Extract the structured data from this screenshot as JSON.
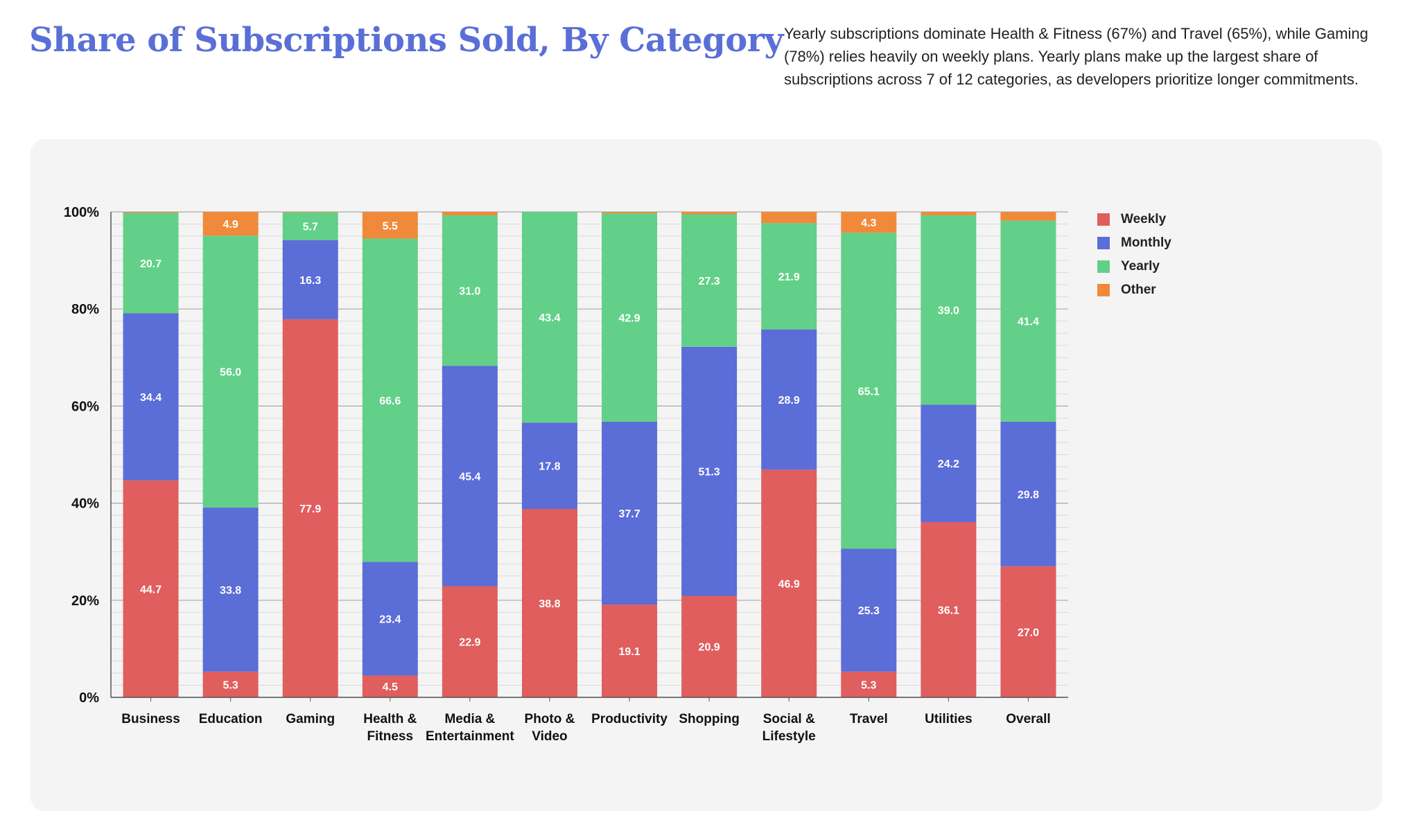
{
  "header": {
    "title": "Share of Subscriptions Sold, By Category",
    "description": "Yearly subscriptions dominate Health & Fitness (67%) and Travel (65%), while Gaming (78%) relies heavily on weekly plans. Yearly plans make up the largest share of subscriptions across 7 of 12 categories, as developers prioritize longer commitments."
  },
  "chart_data": {
    "type": "bar",
    "stacked": true,
    "title": "Share of Subscriptions Sold, By Category",
    "xlabel": "",
    "ylabel": "",
    "ylim": [
      0,
      100
    ],
    "yticks": [
      "0%",
      "20%",
      "40%",
      "60%",
      "80%",
      "100%"
    ],
    "legend_position": "right",
    "categories": [
      [
        "Business"
      ],
      [
        "Education"
      ],
      [
        "Gaming"
      ],
      [
        "Health &",
        "Fitness"
      ],
      [
        "Media &",
        "Entertainment"
      ],
      [
        "Photo &",
        "Video"
      ],
      [
        "Productivity"
      ],
      [
        "Shopping"
      ],
      [
        "Social &",
        "Lifestyle"
      ],
      [
        "Travel"
      ],
      [
        "Utilities"
      ],
      [
        "Overall"
      ]
    ],
    "series": [
      {
        "name": "Weekly",
        "color": "#e05e5e",
        "values": [
          44.7,
          5.3,
          77.9,
          4.5,
          22.9,
          38.8,
          19.1,
          20.9,
          46.9,
          5.3,
          36.1,
          27.0
        ],
        "labels": [
          "44.7",
          "5.3",
          "77.9",
          "4.5",
          "22.9",
          "38.8",
          "19.1",
          "20.9",
          "46.9",
          "5.3",
          "36.1",
          "27.0"
        ]
      },
      {
        "name": "Monthly",
        "color": "#5b6dd6",
        "values": [
          34.4,
          33.8,
          16.3,
          23.4,
          45.4,
          17.8,
          37.7,
          51.3,
          28.9,
          25.3,
          24.2,
          29.8
        ],
        "labels": [
          "34.4",
          "33.8",
          "16.3",
          "23.4",
          "45.4",
          "17.8",
          "37.7",
          "51.3",
          "28.9",
          "25.3",
          "24.2",
          "29.8"
        ]
      },
      {
        "name": "Yearly",
        "color": "#62d088",
        "values": [
          20.7,
          56.0,
          5.7,
          66.6,
          31.0,
          43.4,
          42.9,
          27.3,
          21.9,
          65.1,
          39.0,
          41.4
        ],
        "labels": [
          "20.7",
          "56.0",
          "5.7",
          "66.6",
          "31.0",
          "43.4",
          "42.9",
          "27.3",
          "21.9",
          "65.1",
          "39.0",
          "41.4"
        ]
      },
      {
        "name": "Other",
        "color": "#f08a3a",
        "values": [
          0.2,
          4.9,
          0.1,
          5.5,
          0.7,
          0.0,
          0.3,
          0.5,
          2.3,
          4.3,
          0.7,
          1.8
        ],
        "labels": [
          "",
          "4.9",
          "",
          "5.5",
          "",
          "",
          "",
          "",
          "",
          "4.3",
          "",
          ""
        ]
      }
    ]
  }
}
